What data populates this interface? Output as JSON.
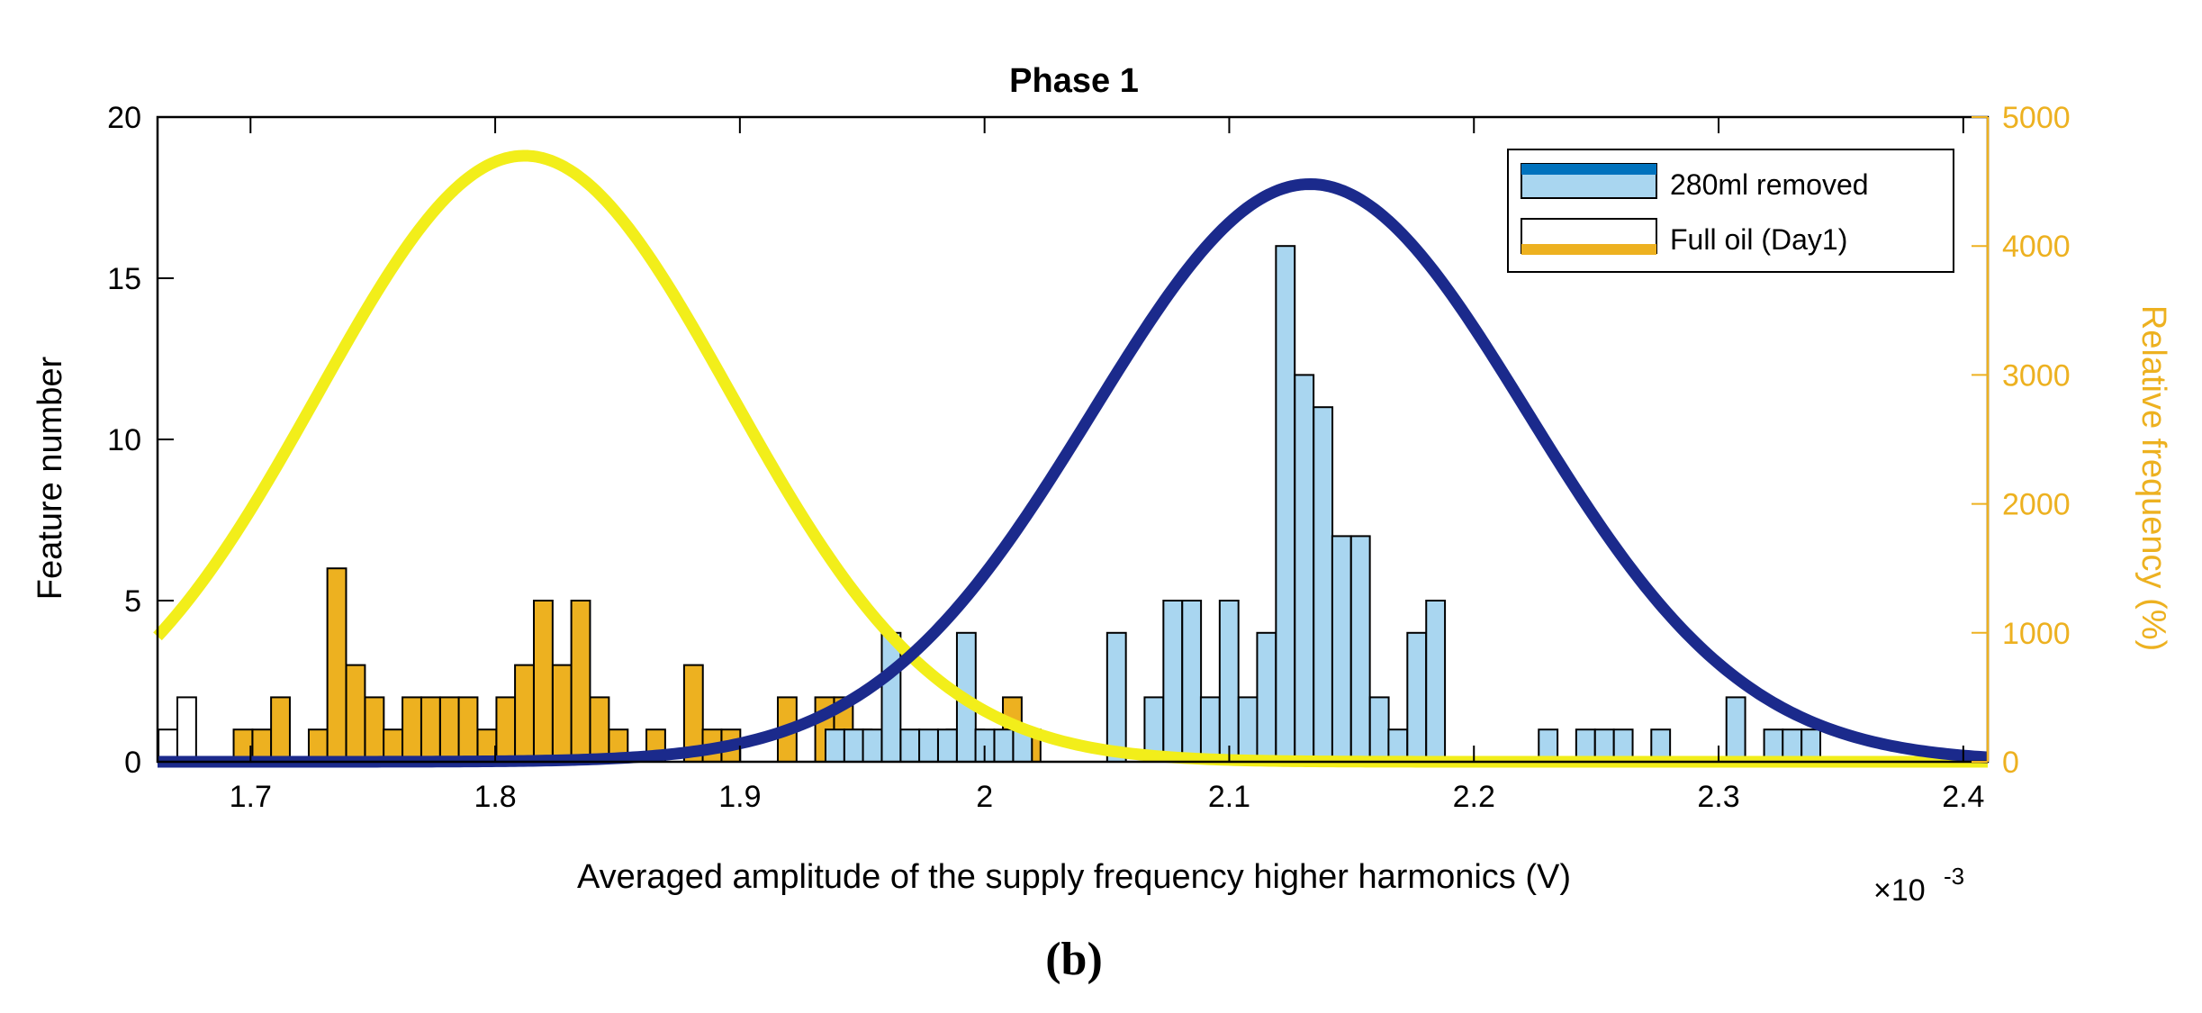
{
  "chart_data": {
    "type": "bar",
    "title": "Phase 1",
    "xlabel": "Averaged amplitude of the supply frequency higher harmonics (V)",
    "ylabel": "Feature number",
    "ylabel_right": "Relative frequency (%)",
    "x_exponent_base": "×10",
    "x_exponent_power": "-3",
    "xlim": [
      1.662,
      2.41
    ],
    "ylim": [
      0,
      20
    ],
    "ylim_right": [
      0,
      5000
    ],
    "xticks": [
      "1.7",
      "1.8",
      "1.9",
      "2",
      "2.1",
      "2.2",
      "2.3",
      "2.4"
    ],
    "xtick_values": [
      1.7,
      1.8,
      1.9,
      2.0,
      2.1,
      2.2,
      2.3,
      2.4
    ],
    "yticks": [
      "0",
      "5",
      "10",
      "15",
      "20"
    ],
    "ytick_values": [
      0,
      5,
      10,
      15,
      20
    ],
    "yticks_right": [
      "0",
      "1000",
      "2000",
      "3000",
      "4000",
      "5000"
    ],
    "ytick_right_values": [
      0,
      1000,
      2000,
      3000,
      4000,
      5000
    ],
    "bin_width": 0.00767,
    "legend": [
      {
        "label": "280ml removed",
        "face": "#A9D6F0",
        "edge": "#0072BD"
      },
      {
        "label": "Full oil (Day1)",
        "face": "#FFFFFF",
        "edge": "#EDB120"
      }
    ],
    "colors": {
      "removed_face": "#A9D6F0",
      "removed_line": "#1B2A8C",
      "full_face": "#EDB120",
      "full_line": "#F2EE1A",
      "right_axis": "#EDB120"
    },
    "series": [
      {
        "name": "280ml removed",
        "bins": [
          [
            1.935,
            1
          ],
          [
            1.9427,
            1
          ],
          [
            1.9503,
            1
          ],
          [
            1.958,
            4
          ],
          [
            1.9657,
            1
          ],
          [
            1.9733,
            1
          ],
          [
            1.981,
            1
          ],
          [
            1.9887,
            4
          ],
          [
            1.9963,
            1
          ],
          [
            2.004,
            1
          ],
          [
            2.0117,
            1
          ],
          [
            2.0501,
            4
          ],
          [
            2.0654,
            2
          ],
          [
            2.0731,
            5
          ],
          [
            2.0808,
            5
          ],
          [
            2.0884,
            2
          ],
          [
            2.0961,
            5
          ],
          [
            2.1038,
            2
          ],
          [
            2.1114,
            4
          ],
          [
            2.1191,
            16
          ],
          [
            2.1268,
            12
          ],
          [
            2.1345,
            11
          ],
          [
            2.1421,
            7
          ],
          [
            2.1498,
            7
          ],
          [
            2.1575,
            2
          ],
          [
            2.1651,
            1
          ],
          [
            2.1728,
            4
          ],
          [
            2.1805,
            5
          ],
          [
            2.2265,
            1
          ],
          [
            2.2418,
            1
          ],
          [
            2.2495,
            1
          ],
          [
            2.2572,
            1
          ],
          [
            2.2725,
            1
          ],
          [
            2.3032,
            2
          ],
          [
            2.3186,
            1
          ],
          [
            2.3262,
            1
          ],
          [
            2.3339,
            1
          ]
        ],
        "fit": {
          "mu": 2.133,
          "sigma": 0.0887,
          "peak": 4480
        }
      },
      {
        "name": "Full oil (Day1)",
        "bins": [
          [
            1.6624,
            1
          ],
          [
            1.6701,
            2
          ],
          [
            1.6931,
            1
          ],
          [
            1.7008,
            1
          ],
          [
            1.7084,
            2
          ],
          [
            1.7238,
            1
          ],
          [
            1.7314,
            6
          ],
          [
            1.7391,
            3
          ],
          [
            1.7468,
            2
          ],
          [
            1.7544,
            1
          ],
          [
            1.7621,
            2
          ],
          [
            1.7698,
            2
          ],
          [
            1.7775,
            2
          ],
          [
            1.7851,
            2
          ],
          [
            1.7928,
            1
          ],
          [
            1.8005,
            2
          ],
          [
            1.8081,
            3
          ],
          [
            1.8158,
            5
          ],
          [
            1.8235,
            3
          ],
          [
            1.8311,
            5
          ],
          [
            1.8388,
            2
          ],
          [
            1.8465,
            1
          ],
          [
            1.8618,
            1
          ],
          [
            1.8772,
            3
          ],
          [
            1.8848,
            1
          ],
          [
            1.8925,
            1
          ],
          [
            1.9155,
            2
          ],
          [
            1.9308,
            2
          ],
          [
            1.9385,
            2
          ],
          [
            1.9462,
            1
          ],
          [
            1.9845,
            1
          ],
          [
            1.9922,
            1
          ],
          [
            2.0075,
            2
          ],
          [
            2.0152,
            1
          ]
        ],
        "fit": {
          "mu": 1.812,
          "sigma": 0.0845,
          "peak": 4700
        }
      }
    ],
    "caption": "(b)"
  }
}
